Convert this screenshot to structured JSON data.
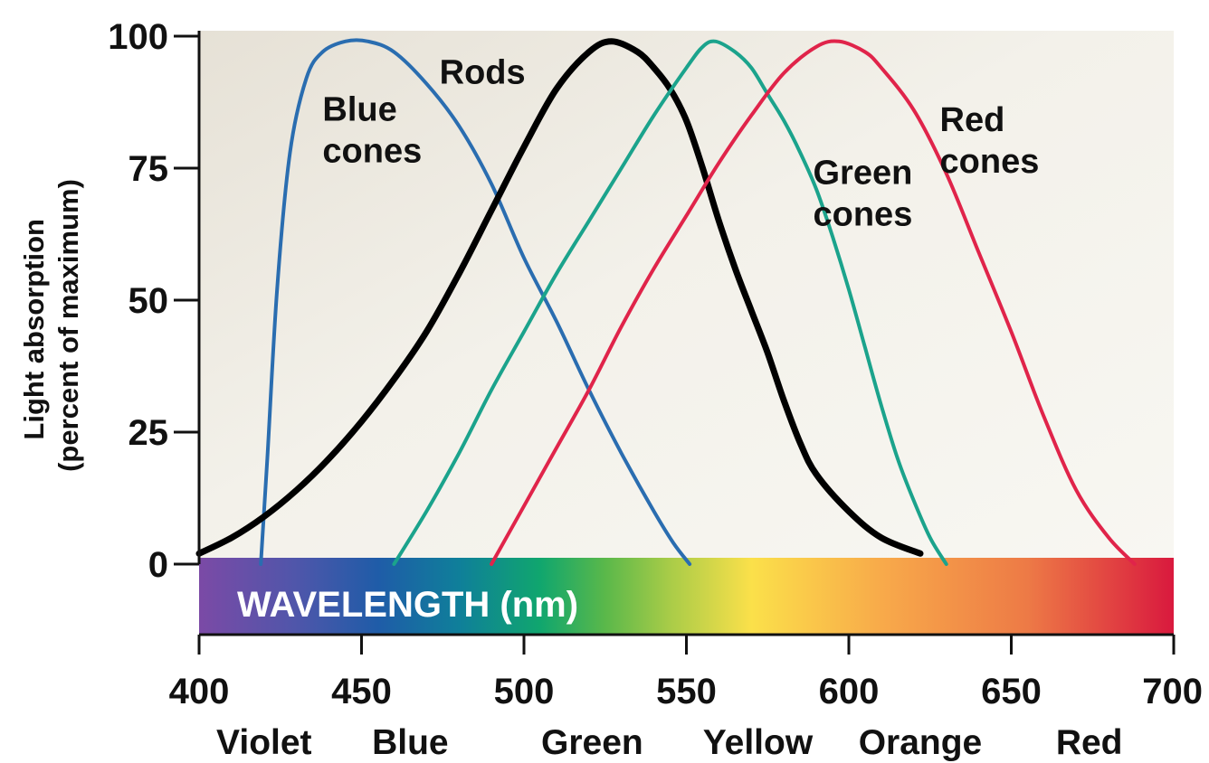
{
  "chart_data": {
    "type": "line",
    "title": "",
    "ylabel_lines": [
      "Light absorption",
      "(percent of maximum)"
    ],
    "band_label": "WAVELENGTH (nm)",
    "xlim": [
      400,
      700
    ],
    "ylim": [
      0,
      100
    ],
    "x_ticks": [
      400,
      450,
      500,
      550,
      600,
      650,
      700
    ],
    "x_tick_labels": [
      "400",
      "450",
      "500",
      "550",
      "600",
      "650",
      "700"
    ],
    "y_ticks": [
      0,
      25,
      50,
      75,
      100
    ],
    "y_tick_labels": [
      "0",
      "25",
      "50",
      "75",
      "100"
    ],
    "color_names": [
      {
        "x": 420,
        "label": "Violet"
      },
      {
        "x": 465,
        "label": "Blue"
      },
      {
        "x": 521,
        "label": "Green"
      },
      {
        "x": 572,
        "label": "Yellow"
      },
      {
        "x": 622,
        "label": "Orange"
      },
      {
        "x": 674,
        "label": "Red"
      }
    ],
    "spectrum_colors": [
      {
        "x": 400,
        "color": "#7b4aa6"
      },
      {
        "x": 430,
        "color": "#4f56aa"
      },
      {
        "x": 455,
        "color": "#1f5ca8"
      },
      {
        "x": 480,
        "color": "#0f7f9a"
      },
      {
        "x": 505,
        "color": "#10a66e"
      },
      {
        "x": 525,
        "color": "#5ab84a"
      },
      {
        "x": 545,
        "color": "#a9cc48"
      },
      {
        "x": 570,
        "color": "#fbe04a"
      },
      {
        "x": 610,
        "color": "#f8aa4a"
      },
      {
        "x": 655,
        "color": "#ed7a46"
      },
      {
        "x": 700,
        "color": "#d9193e"
      }
    ],
    "grid": false,
    "series": [
      {
        "name": "Blue cones",
        "label_lines": [
          "Blue",
          "cones"
        ],
        "label_anchor": {
          "x": 438,
          "y": 84
        },
        "color": "#2a6db0",
        "x": [
          419,
          421,
          424,
          428,
          433,
          438,
          445,
          452,
          460,
          470,
          480,
          490,
          500,
          510,
          520,
          530,
          540,
          546,
          551
        ],
        "y": [
          0,
          20,
          52,
          78,
          92,
          97,
          99,
          99,
          97,
          91,
          83,
          72,
          58,
          46,
          33,
          21,
          10,
          4,
          0
        ]
      },
      {
        "name": "Rods",
        "label_lines": [
          "Rods"
        ],
        "label_anchor": {
          "x": 474,
          "y": 91
        },
        "color": "#000000",
        "x": [
          400,
          410,
          420,
          430,
          440,
          450,
          460,
          470,
          480,
          490,
          500,
          510,
          520,
          527,
          535,
          540,
          545,
          550,
          555,
          560,
          565,
          570,
          575,
          580,
          585,
          590,
          600,
          610,
          622
        ],
        "y": [
          2,
          5,
          9,
          14,
          20,
          27,
          35,
          44,
          55,
          67,
          79,
          90,
          97,
          99,
          97,
          94,
          90,
          84,
          75,
          65,
          56,
          48,
          40,
          31,
          23,
          17,
          10,
          5,
          2
        ]
      },
      {
        "name": "Green cones",
        "label_lines": [
          "Green",
          "cones"
        ],
        "label_anchor": {
          "x": 589,
          "y": 72
        },
        "color": "#1ba38c",
        "x": [
          460,
          470,
          480,
          490,
          500,
          510,
          520,
          530,
          540,
          550,
          555,
          559,
          565,
          570,
          575,
          580,
          585,
          590,
          595,
          600,
          605,
          610,
          615,
          620,
          625,
          630
        ],
        "y": [
          0,
          10,
          21,
          33,
          44,
          55,
          65,
          75,
          85,
          94,
          98,
          99,
          97,
          94,
          89,
          84,
          78,
          71,
          62,
          52,
          41,
          30,
          20,
          12,
          5,
          0
        ]
      },
      {
        "name": "Red cones",
        "label_lines": [
          "Red",
          "cones"
        ],
        "label_anchor": {
          "x": 628,
          "y": 82
        },
        "color": "#e0244a",
        "x": [
          490,
          500,
          510,
          520,
          530,
          540,
          550,
          560,
          570,
          580,
          590,
          597,
          605,
          610,
          620,
          630,
          640,
          650,
          660,
          670,
          680,
          688
        ],
        "y": [
          0,
          11,
          22,
          33,
          45,
          56,
          66,
          76,
          85,
          93,
          98,
          99,
          97,
          94,
          86,
          74,
          59,
          44,
          28,
          14,
          5,
          0
        ]
      }
    ]
  }
}
